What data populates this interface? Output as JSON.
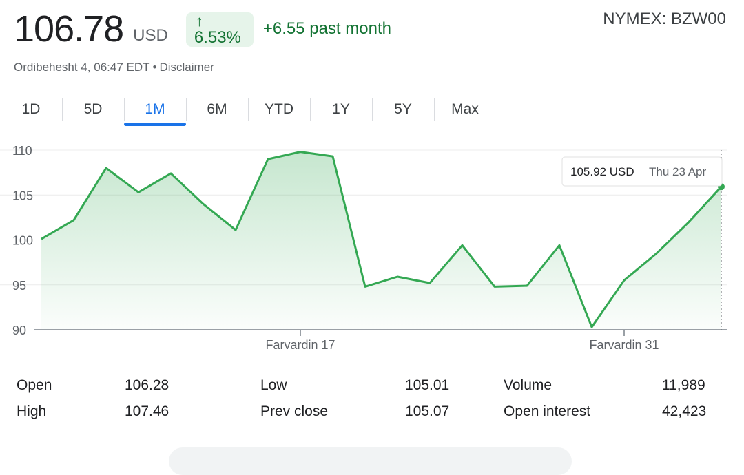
{
  "quote": {
    "price": "106.78",
    "currency": "USD",
    "change_arrow": "↑",
    "change_pct": "6.53%",
    "change_text": "+6.55 past month",
    "ticker": "NYMEX: BZW00",
    "timestamp": "Ordibehesht 4, 06:47 EDT",
    "separator": "•",
    "disclaimer": "Disclaimer",
    "positive_color": "#137333",
    "badge_bg": "#e6f4ea"
  },
  "tabs": [
    {
      "label": "1D",
      "active": false
    },
    {
      "label": "5D",
      "active": false
    },
    {
      "label": "1M",
      "active": true
    },
    {
      "label": "6M",
      "active": false
    },
    {
      "label": "YTD",
      "active": false
    },
    {
      "label": "1Y",
      "active": false
    },
    {
      "label": "5Y",
      "active": false
    },
    {
      "label": "Max",
      "active": false
    }
  ],
  "chart_data": {
    "type": "area",
    "x_tick_labels": [
      "Farvardin 17",
      "Farvardin 31"
    ],
    "x_tick_positions": [
      8,
      18
    ],
    "y_ticks": [
      90,
      95,
      100,
      105,
      110
    ],
    "ylim": [
      90,
      110
    ],
    "x": [
      0,
      1,
      2,
      3,
      4,
      5,
      6,
      7,
      8,
      9,
      10,
      11,
      12,
      13,
      14,
      15,
      16,
      17,
      18,
      19,
      20,
      21
    ],
    "values": [
      100.1,
      102.2,
      108.0,
      105.3,
      107.4,
      104.0,
      101.1,
      109.0,
      109.8,
      109.3,
      94.8,
      95.9,
      95.2,
      99.4,
      94.8,
      94.9,
      99.4,
      90.3,
      95.5,
      98.5,
      102.0,
      105.92
    ],
    "line_color": "#34a853",
    "grid": true,
    "tooltip": {
      "value": "105.92 USD",
      "date": "Thu 23 Apr"
    }
  },
  "stats": {
    "col1": [
      {
        "label": "Open",
        "value": "106.28"
      },
      {
        "label": "High",
        "value": "107.46"
      }
    ],
    "col2": [
      {
        "label": "Low",
        "value": "105.01"
      },
      {
        "label": "Prev close",
        "value": "105.07"
      }
    ],
    "col3": [
      {
        "label": "Volume",
        "value": "11,989"
      },
      {
        "label": "Open interest",
        "value": "42,423"
      }
    ]
  }
}
